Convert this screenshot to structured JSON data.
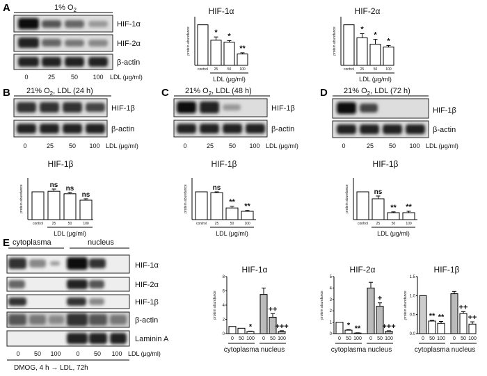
{
  "panels": {
    "A": "A",
    "B": "B",
    "C": "C",
    "D": "D",
    "E": "E"
  },
  "blot_A": {
    "header": "1% O",
    "header_sub": "2",
    "rows": [
      "HIF-1α",
      "HIF-2α",
      "β-actin"
    ],
    "x_ticks": [
      "0",
      "25",
      "50",
      "100"
    ],
    "x_unit": "LDL (μg/ml)"
  },
  "blot_B": {
    "header": "21% O",
    "header_sub": "2",
    "header_tail": ", LDL (24 h)",
    "rows": [
      "HIF-1β",
      "β-actin"
    ],
    "x_ticks": [
      "0",
      "25",
      "50",
      "100"
    ],
    "x_unit": "LDL (μg/ml)"
  },
  "blot_C": {
    "header": "21% O",
    "header_sub": "2",
    "header_tail": ", LDL (48 h)",
    "rows": [
      "HIF-1β",
      "β-actin"
    ],
    "x_ticks": [
      "0",
      "25",
      "50",
      "100"
    ],
    "x_unit": "LDL (μg/ml)"
  },
  "blot_D": {
    "header": "21% O",
    "header_sub": "2",
    "header_tail": ", LDL (72 h)",
    "rows": [
      "HIF-1β",
      "β-actin"
    ],
    "x_ticks": [
      "0",
      "25",
      "50",
      "100"
    ],
    "x_unit": "LDL (μg/ml)"
  },
  "blot_E": {
    "groups": [
      "cytoplasma",
      "nucleus"
    ],
    "rows": [
      "HIF-1α",
      "HIF-2α",
      "HIF-1β",
      "β-actin",
      "Laminin A"
    ],
    "x_ticks": [
      "0",
      "50",
      "100",
      "0",
      "50",
      "100"
    ],
    "x_unit": "LDL (μg/ml)",
    "footer": "DMOG, 4 h → LDL, 72h"
  },
  "chart_data": [
    {
      "id": "A1",
      "type": "bar",
      "title": "HIF-1α",
      "ylabel": "protein abundance",
      "xlabel": "LDL (μg/ml)",
      "categories": [
        "control",
        "25",
        "50",
        "100"
      ],
      "values": [
        1.0,
        0.62,
        0.57,
        0.28
      ],
      "errors": [
        0,
        0.08,
        0.04,
        0.03
      ],
      "sig": [
        "",
        "*",
        "*",
        "**"
      ],
      "ylim": [
        0,
        1.2
      ]
    },
    {
      "id": "A2",
      "type": "bar",
      "title": "HIF-2α",
      "ylabel": "protein abundance",
      "xlabel": "LDL (μg/ml)",
      "categories": [
        "control",
        "25",
        "50",
        "100"
      ],
      "values": [
        1.0,
        0.68,
        0.52,
        0.45
      ],
      "errors": [
        0,
        0.1,
        0.12,
        0.04
      ],
      "sig": [
        "",
        "*",
        "*",
        "*"
      ],
      "ylim": [
        0,
        1.2
      ]
    },
    {
      "id": "B",
      "type": "bar",
      "title": "HIF-1β",
      "ylabel": "protein abundance",
      "xlabel": "LDL (μg/ml)",
      "categories": [
        "control",
        "25",
        "50",
        "100"
      ],
      "values": [
        1.0,
        1.02,
        0.93,
        0.7
      ],
      "errors": [
        0,
        0.08,
        0.05,
        0.05
      ],
      "sig": [
        "",
        "ns",
        "ns",
        "ns"
      ],
      "ylim": [
        0,
        1.5
      ]
    },
    {
      "id": "C",
      "type": "bar",
      "title": "HIF-1β",
      "ylabel": "protein abundance",
      "xlabel": "LDL (μg/ml)",
      "categories": [
        "control",
        "25",
        "50",
        "100"
      ],
      "values": [
        1.0,
        0.97,
        0.42,
        0.3
      ],
      "errors": [
        0,
        0.03,
        0.06,
        0.03
      ],
      "sig": [
        "",
        "ns",
        "**",
        "**"
      ],
      "ylim": [
        0,
        1.5
      ]
    },
    {
      "id": "D",
      "type": "bar",
      "title": "HIF-1β",
      "ylabel": "protein abundance",
      "xlabel": "LDL (μg/ml)",
      "categories": [
        "control",
        "25",
        "50",
        "100"
      ],
      "values": [
        1.0,
        0.75,
        0.25,
        0.25
      ],
      "errors": [
        0,
        0.1,
        0.03,
        0.05
      ],
      "sig": [
        "",
        "ns",
        "**",
        "**"
      ],
      "ylim": [
        0,
        1.5
      ]
    },
    {
      "id": "E1",
      "type": "bar",
      "title": "HIF-1α",
      "ylabel": "protein abundance",
      "groups": [
        "cytoplasma",
        "nucleus"
      ],
      "categories": [
        "0",
        "50",
        "100",
        "0",
        "50",
        "100"
      ],
      "values": [
        1.0,
        0.75,
        0.3,
        5.5,
        2.3,
        0.3
      ],
      "errors": [
        0,
        0,
        0.05,
        0.9,
        0.5,
        0.1
      ],
      "fills": [
        "#ffffff",
        "#ffffff",
        "#ffffff",
        "#bbbbbb",
        "#bbbbbb",
        "#bbbbbb"
      ],
      "sig": [
        "",
        "",
        "*",
        "",
        "++",
        "+++"
      ],
      "ylim": [
        0,
        8
      ],
      "yticks": [
        "0",
        "2",
        "4",
        "6",
        "8"
      ]
    },
    {
      "id": "E2",
      "type": "bar",
      "title": "HIF-2α",
      "ylabel": "protein abundance",
      "groups": [
        "cytoplasma",
        "nucleus"
      ],
      "categories": [
        "0",
        "50",
        "100",
        "0",
        "50",
        "100"
      ],
      "values": [
        1.0,
        0.3,
        0.05,
        4.0,
        2.4,
        0.2
      ],
      "errors": [
        0,
        0.05,
        0.02,
        0.5,
        0.3,
        0.05
      ],
      "fills": [
        "#ffffff",
        "#ffffff",
        "#ffffff",
        "#bbbbbb",
        "#bbbbbb",
        "#bbbbbb"
      ],
      "sig": [
        "",
        "*",
        "**",
        "",
        "+",
        "+++"
      ],
      "ylim": [
        0,
        5
      ],
      "yticks": [
        "0",
        "1",
        "2",
        "3",
        "4",
        "5"
      ]
    },
    {
      "id": "E3",
      "type": "bar",
      "title": "HIF-1β",
      "ylabel": "protein abundance",
      "groups": [
        "cytoplasma",
        "nucleus"
      ],
      "categories": [
        "0",
        "50",
        "100",
        "0",
        "50",
        "100"
      ],
      "values": [
        1.0,
        0.33,
        0.27,
        1.05,
        0.53,
        0.25
      ],
      "errors": [
        0,
        0.02,
        0.05,
        0.06,
        0.05,
        0.06
      ],
      "fills": [
        "#cccccc",
        "#ffffff",
        "#ffffff",
        "#bbbbbb",
        "#ffffff",
        "#ffffff"
      ],
      "sig": [
        "",
        "**",
        "**",
        "",
        "++",
        "++"
      ],
      "ylim": [
        0,
        1.5
      ],
      "yticks": [
        "0.0",
        "0.5",
        "1.0",
        "1.5"
      ]
    }
  ]
}
